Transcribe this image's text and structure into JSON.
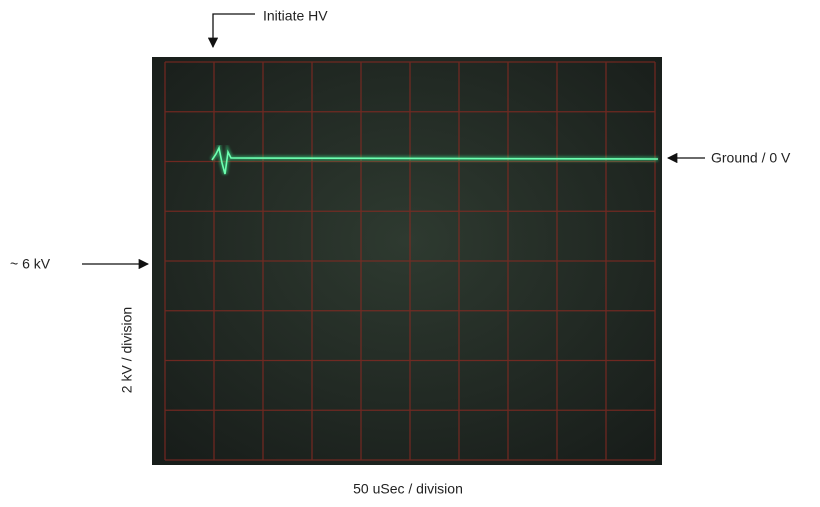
{
  "annotations": {
    "initiate": "Initiate HV",
    "ground": "Ground / 0 V",
    "level": "~ 6 kV",
    "vertical_scale": "2 kV / division",
    "horizontal_scale": "50 uSec / division"
  }
}
